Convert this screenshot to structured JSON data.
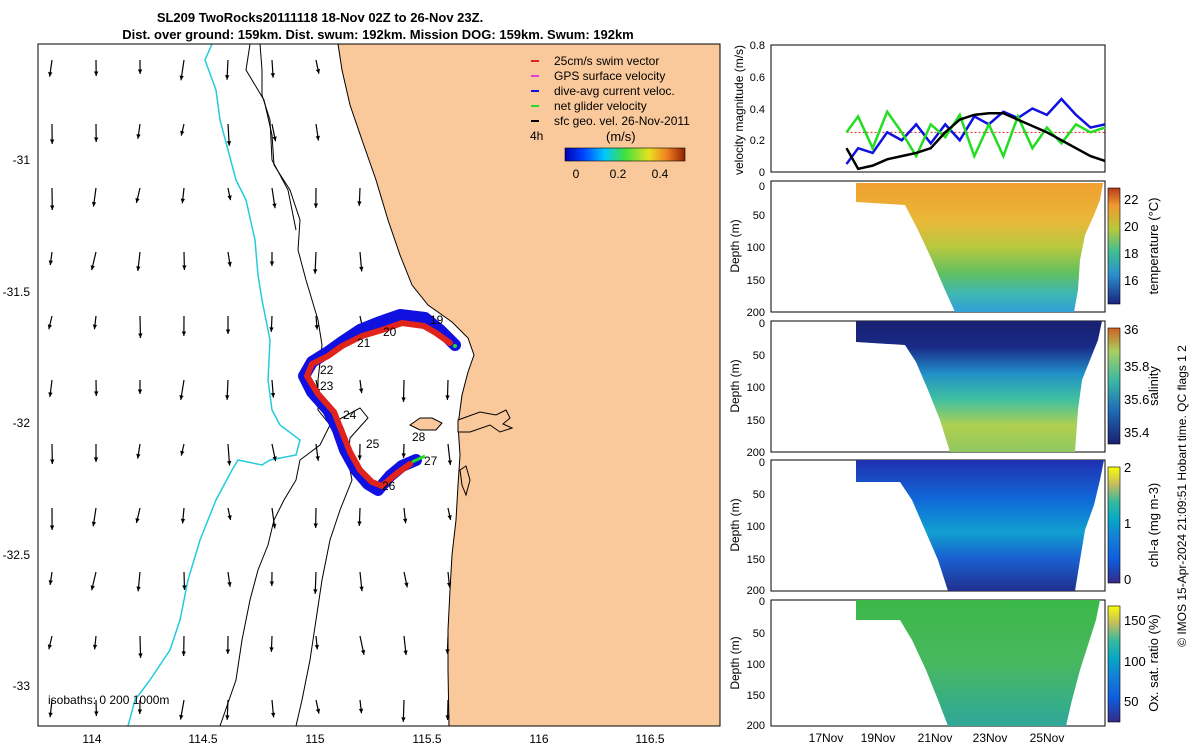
{
  "header": {
    "title_line1": "SL209 TwoRocks20111118 18-Nov 02Z to 26-Nov 23Z.",
    "title_line2": "Dist. over ground: 159km. Dist. swum: 192km. Mission DOG: 159km. Swum: 192km"
  },
  "colors": {
    "land": "#F9C99B",
    "glider_track": "#E0231B",
    "dive_avg": "#1010E0",
    "net_velocity": "#22DD22",
    "coast": "#000000",
    "isobath_0": "#000000",
    "isobath_200_1000": "#22CCDD"
  },
  "map": {
    "lon_ticks": [
      "114",
      "114.5",
      "115",
      "115.5",
      "116",
      "116.5"
    ],
    "lat_ticks": [
      "-31",
      "-31.5",
      "-32",
      "-32.5",
      "-33"
    ],
    "legend": [
      {
        "label": "25cm/s swim vector",
        "color": "#E0231B"
      },
      {
        "label": "GPS surface velocity",
        "color": "#E040E0"
      },
      {
        "label": "dive-avg current veloc.",
        "color": "#1010E0"
      },
      {
        "label": "net glider velocity",
        "color": "#22DD22"
      },
      {
        "label": "sfc geo. vel. 26-Nov-2011",
        "color": "#000000"
      }
    ],
    "scale_label": "4h",
    "colorbar_unit": "(m/s)",
    "colorbar_ticks": [
      "0",
      "0.2",
      "0.4"
    ],
    "isobath_label": "isobaths: 0   200   1000m",
    "day_labels": [
      "19",
      "20",
      "21",
      "22",
      "23",
      "24",
      "25",
      "26",
      "27",
      "28"
    ]
  },
  "chart_data": [
    {
      "type": "line",
      "title": "",
      "xlabel": "",
      "ylabel": "velocity magnitude (m/s)",
      "ylim": [
        0,
        0.8
      ],
      "yticks": [
        "0",
        "0.2",
        "0.4",
        "0.6",
        "0.8"
      ],
      "x_tick_labels": [
        "17Nov",
        "19Nov",
        "21Nov",
        "23Nov",
        "25Nov"
      ],
      "series": [
        {
          "name": "25cm/s swim vector",
          "color": "#E0231B",
          "x": [
            18.1,
            27.0
          ],
          "values": [
            0.25,
            0.25
          ]
        },
        {
          "name": "dive-avg current veloc.",
          "color": "#1010E0",
          "x": [
            18.1,
            18.5,
            19.0,
            19.5,
            20.0,
            20.5,
            21.0,
            21.5,
            22.0,
            22.5,
            23.0,
            23.5,
            24.0,
            24.5,
            25.0,
            25.5,
            26.0,
            26.5,
            27.0
          ],
          "values": [
            0.05,
            0.15,
            0.12,
            0.25,
            0.2,
            0.3,
            0.18,
            0.3,
            0.2,
            0.35,
            0.3,
            0.38,
            0.34,
            0.4,
            0.36,
            0.46,
            0.36,
            0.28,
            0.3
          ]
        },
        {
          "name": "net glider velocity",
          "color": "#22DD22",
          "x": [
            18.1,
            18.5,
            19.0,
            19.5,
            20.0,
            20.5,
            21.0,
            21.5,
            22.0,
            22.5,
            23.0,
            23.5,
            24.0,
            24.5,
            25.0,
            25.5,
            26.0,
            26.5,
            27.0
          ],
          "values": [
            0.25,
            0.35,
            0.15,
            0.38,
            0.25,
            0.1,
            0.3,
            0.22,
            0.36,
            0.1,
            0.3,
            0.1,
            0.35,
            0.15,
            0.28,
            0.18,
            0.3,
            0.25,
            0.28
          ]
        },
        {
          "name": "sfc geo. vel. 26-Nov-2011",
          "color": "#000000",
          "x": [
            18.1,
            18.5,
            19.0,
            19.5,
            20.0,
            20.5,
            21.0,
            21.5,
            22.0,
            22.5,
            23.0,
            23.5,
            24.0,
            24.5,
            25.0,
            25.5,
            26.0,
            26.5,
            27.0
          ],
          "values": [
            0.15,
            0.02,
            0.04,
            0.08,
            0.1,
            0.12,
            0.15,
            0.25,
            0.33,
            0.36,
            0.37,
            0.37,
            0.33,
            0.29,
            0.25,
            0.2,
            0.15,
            0.1,
            0.07
          ]
        }
      ]
    },
    {
      "type": "heatmap",
      "ylabel": "Depth (m)",
      "colorbar_label": "temperature (°C)",
      "yticks": [
        "0",
        "50",
        "100",
        "150",
        "200"
      ],
      "colorbar_ticks": [
        "22",
        "20",
        "18",
        "16"
      ]
    },
    {
      "type": "heatmap",
      "ylabel": "Depth (m)",
      "colorbar_label": "salinity",
      "yticks": [
        "0",
        "50",
        "100",
        "150",
        "200"
      ],
      "colorbar_ticks": [
        "36",
        "35.8",
        "35.6",
        "35.4"
      ]
    },
    {
      "type": "heatmap",
      "ylabel": "Depth (m)",
      "colorbar_label": "chl-a (mg m-3)",
      "yticks": [
        "0",
        "50",
        "100",
        "150",
        "200"
      ],
      "colorbar_ticks": [
        "2",
        "1",
        "0"
      ]
    },
    {
      "type": "heatmap",
      "ylabel": "Depth (m)",
      "colorbar_label": "Ox. sat. ratio (%)",
      "yticks": [
        "0",
        "50",
        "100",
        "150",
        "200"
      ],
      "colorbar_ticks": [
        "150",
        "100",
        "50"
      ]
    }
  ],
  "footer": {
    "vertical_note": "© IMOS 15-Apr-2024 21:09:51 Hobart time. QC flags 1  2"
  }
}
